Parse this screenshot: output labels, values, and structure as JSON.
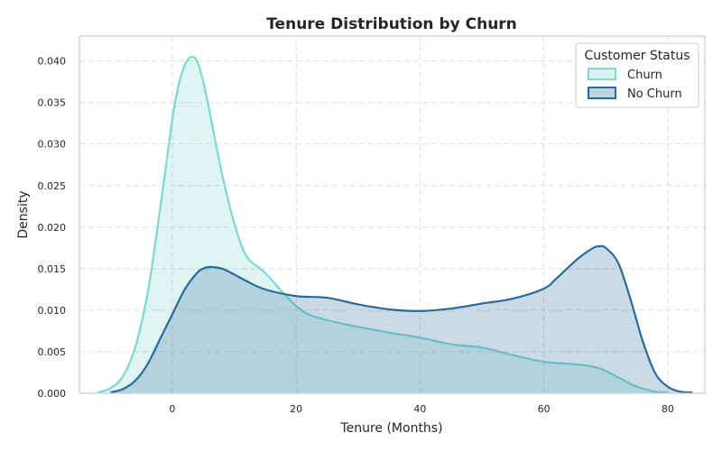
{
  "chart_data": {
    "type": "area",
    "title": "Tenure Distribution by Churn",
    "xlabel": "Tenure (Months)",
    "ylabel": "Density",
    "xlim": [
      -15,
      86
    ],
    "ylim": [
      0,
      0.043
    ],
    "x_ticks": [
      0,
      20,
      40,
      60,
      80
    ],
    "y_ticks": [
      0.0,
      0.005,
      0.01,
      0.015,
      0.02,
      0.025,
      0.03,
      0.035,
      0.04
    ],
    "x_tick_labels": [
      "0",
      "20",
      "40",
      "60",
      "80"
    ],
    "y_tick_labels": [
      "0.000",
      "0.005",
      "0.010",
      "0.015",
      "0.020",
      "0.025",
      "0.030",
      "0.035",
      "0.040"
    ],
    "grid": true,
    "legend": {
      "title": "Customer Status",
      "placement": "top-right"
    },
    "series": [
      {
        "name": "Churn",
        "color": "#7fd8d0",
        "x": [
          -12,
          -10,
          -8,
          -6,
          -4,
          -2,
          0,
          1,
          2,
          3,
          4,
          5,
          6,
          8,
          10,
          12,
          15,
          18,
          20,
          22,
          25,
          30,
          35,
          40,
          45,
          50,
          55,
          60,
          65,
          68,
          70,
          72,
          75,
          78,
          80
        ],
        "y": [
          0.0001,
          0.0006,
          0.002,
          0.0055,
          0.012,
          0.022,
          0.033,
          0.037,
          0.0395,
          0.0405,
          0.04,
          0.0375,
          0.034,
          0.0265,
          0.0205,
          0.0165,
          0.0145,
          0.012,
          0.0105,
          0.0095,
          0.0088,
          0.008,
          0.0073,
          0.0067,
          0.0059,
          0.0055,
          0.0046,
          0.0038,
          0.0035,
          0.0032,
          0.0027,
          0.0019,
          0.0008,
          0.0002,
          0.0001
        ]
      },
      {
        "name": "No Churn",
        "color": "#2a6b9a",
        "x": [
          -10,
          -8,
          -6,
          -4,
          -2,
          0,
          2,
          4,
          5,
          6,
          8,
          10,
          12,
          15,
          20,
          25,
          30,
          35,
          40,
          45,
          50,
          55,
          60,
          62,
          64,
          66,
          68,
          69,
          70,
          72,
          74,
          76,
          78,
          80,
          82,
          84
        ],
        "y": [
          0.0001,
          0.0005,
          0.0015,
          0.0035,
          0.0065,
          0.0095,
          0.0125,
          0.0145,
          0.015,
          0.0152,
          0.015,
          0.0143,
          0.0135,
          0.0125,
          0.0117,
          0.0115,
          0.0107,
          0.0101,
          0.0099,
          0.0102,
          0.0108,
          0.0114,
          0.0126,
          0.0138,
          0.0152,
          0.0165,
          0.0175,
          0.0177,
          0.0175,
          0.0157,
          0.0113,
          0.0062,
          0.0024,
          0.0008,
          0.0002,
          0.0001
        ]
      }
    ]
  }
}
